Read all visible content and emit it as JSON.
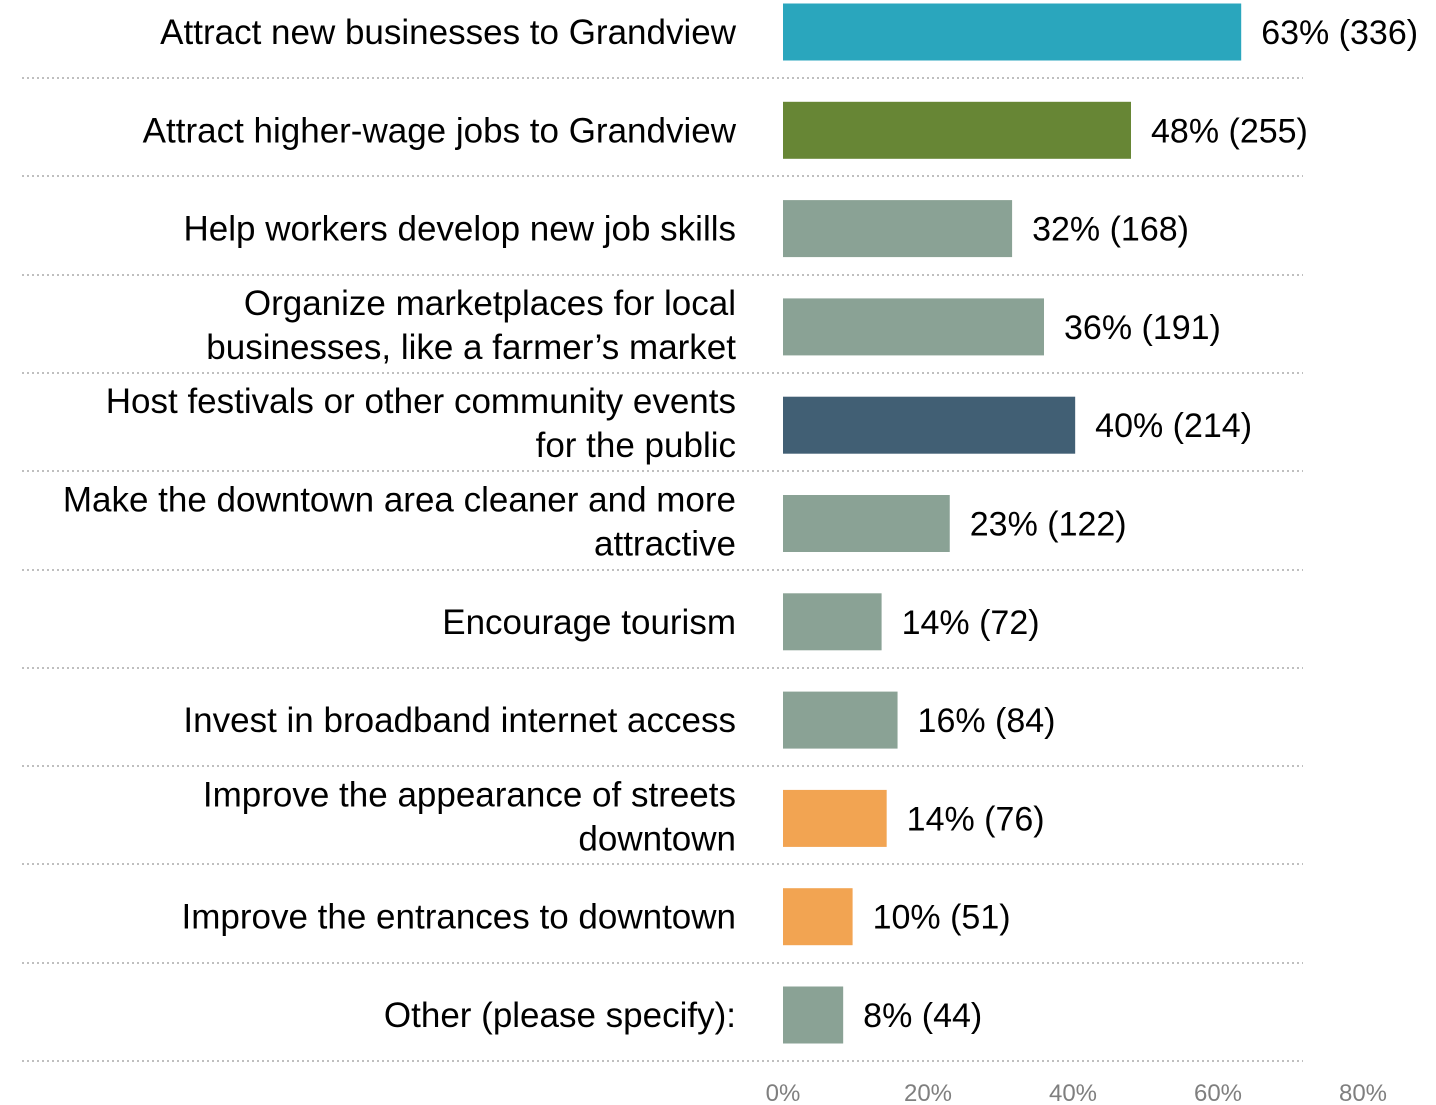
{
  "chart_data": {
    "type": "bar",
    "orientation": "horizontal",
    "categories": [
      [
        "Attract new businesses to Grandview"
      ],
      [
        "Attract higher-wage jobs to Grandview"
      ],
      [
        "Help workers develop new job skills"
      ],
      [
        "Organize marketplaces for local",
        "businesses, like a farmer’s market"
      ],
      [
        "Host festivals or other community events",
        "for the public"
      ],
      [
        "Make the downtown area cleaner and more",
        "attractive"
      ],
      [
        "Encourage tourism"
      ],
      [
        "Invest in broadband internet access"
      ],
      [
        "Improve the appearance of streets",
        "downtown"
      ],
      [
        "Improve the entrances to downtown"
      ],
      [
        "Other (please specify):"
      ]
    ],
    "values": [
      63,
      48,
      32,
      36,
      40,
      23,
      14,
      16,
      14,
      10,
      8
    ],
    "bar_values": [
      63.2,
      48.0,
      31.6,
      36.0,
      40.3,
      23.0,
      13.6,
      15.8,
      14.3,
      9.6,
      8.3
    ],
    "data_labels": [
      "63% (336)",
      "48% (255)",
      "32% (168)",
      "36% (191)",
      "40% (214)",
      "23% (122)",
      "14% (72)",
      "16% (84)",
      "14% (76)",
      "10% (51)",
      "8% (44)"
    ],
    "colors": [
      "#2aa6bd",
      "#678635",
      "#8aa295",
      "#8aa295",
      "#415f74",
      "#8aa295",
      "#8aa295",
      "#8aa295",
      "#f2a452",
      "#f2a452",
      "#8aa295"
    ],
    "x_ticks": [
      "0%",
      "20%",
      "40%",
      "60%",
      "80%"
    ],
    "xlim": [
      0,
      80
    ],
    "grid": false,
    "separators": "dotted",
    "title": "",
    "xlabel": "",
    "ylabel": ""
  }
}
